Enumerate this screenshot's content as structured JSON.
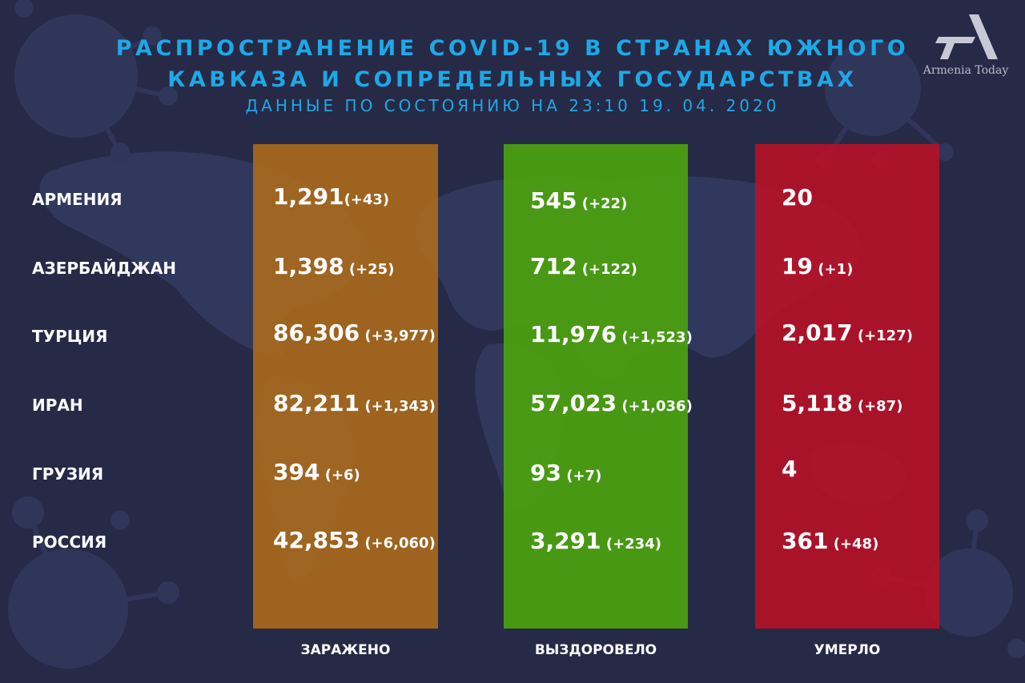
{
  "title_line1": "РАСПРОСТРАНЕНИЕ COVID-19 В СТРАНАХ ЮЖНОГО",
  "title_line2": "КАВКАЗА И СОПРЕДЕЛЬНЫХ ГОСУДАРСТВАХ",
  "subtitle": "ДАННЫЕ ПО СОСТОЯНИЮ НА 23:10  19. 04. 2020",
  "logo_text": "Armenia Today",
  "colors": {
    "background": "#262a47",
    "title": "#1ea8e6",
    "infected": "#b16c18",
    "recovered": "#4ba010",
    "died": "#bc1026"
  },
  "columns": {
    "infected": "ЗАРАЖЕНО",
    "recovered": "ВЫЗДОРОВЕЛО",
    "died": "УМЕРЛО"
  },
  "rows": [
    {
      "country": "АРМЕНИЯ",
      "infected": {
        "value": "1,291",
        "delta": "(+43)"
      },
      "recovered": {
        "value": "545",
        "delta": " (+22)"
      },
      "died": {
        "value": "20",
        "delta": ""
      }
    },
    {
      "country": "АЗЕРБАЙДЖАН",
      "infected": {
        "value": "1,398",
        "delta": " (+25)"
      },
      "recovered": {
        "value": "712",
        "delta": " (+122)"
      },
      "died": {
        "value": "19",
        "delta": " (+1)"
      }
    },
    {
      "country": "ТУРЦИЯ",
      "infected": {
        "value": "86,306",
        "delta": " (+3,977)"
      },
      "recovered": {
        "value": "11,976",
        "delta": " (+1,523)"
      },
      "died": {
        "value": "2,017",
        "delta": " (+127)"
      }
    },
    {
      "country": "ИРАН",
      "infected": {
        "value": "82,211",
        "delta": " (+1,343)"
      },
      "recovered": {
        "value": "57,023",
        "delta": " (+1,036)"
      },
      "died": {
        "value": "5,118",
        "delta": " (+87)"
      }
    },
    {
      "country": "ГРУЗИЯ",
      "infected": {
        "value": "394",
        "delta": " (+6)"
      },
      "recovered": {
        "value": "93",
        "delta": " (+7)"
      },
      "died": {
        "value": "4",
        "delta": ""
      }
    },
    {
      "country": "РОССИЯ",
      "infected": {
        "value": "42,853",
        "delta": " (+6,060)"
      },
      "recovered": {
        "value": "3,291",
        "delta": " (+234)"
      },
      "died": {
        "value": "361",
        "delta": " (+48)"
      }
    }
  ]
}
